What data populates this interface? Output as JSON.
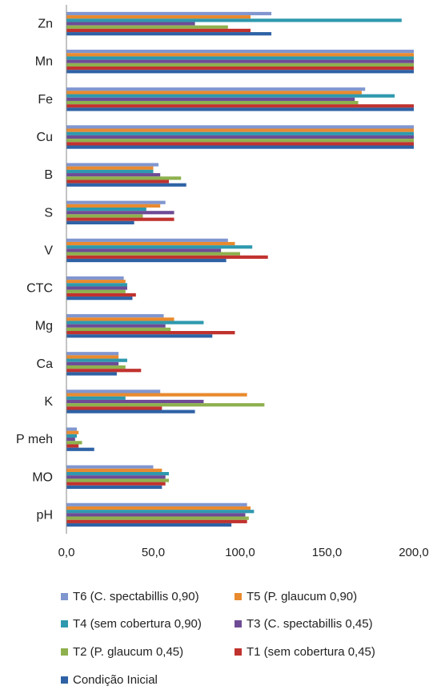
{
  "chart_data": {
    "type": "bar",
    "orientation": "horizontal",
    "categories": [
      "Zn",
      "Mn",
      "Fe",
      "Cu",
      "B",
      "S",
      "V",
      "CTC",
      "Mg",
      "Ca",
      "K",
      "P meh",
      "MO",
      "pH"
    ],
    "xlim": [
      0,
      200
    ],
    "xticks": [
      "0,0",
      "50,0",
      "100,0",
      "150,0",
      "200,0"
    ],
    "grid": false,
    "legend_position": "bottom",
    "title": "",
    "xlabel": "",
    "ylabel": "",
    "series": [
      {
        "name": "T6 (C. spectabillis 0,90)",
        "color": "#8096cf",
        "values": [
          118,
          200,
          172,
          200,
          53,
          57,
          93,
          33,
          56,
          30,
          54,
          6,
          50,
          104
        ]
      },
      {
        "name": "T5 (P. glaucum 0,90)",
        "color": "#e98a2e",
        "values": [
          106,
          200,
          170,
          200,
          50,
          54,
          97,
          34,
          62,
          30,
          104,
          7,
          55,
          106
        ]
      },
      {
        "name": "T4 (sem cobertura 0,90)",
        "color": "#2e99ae",
        "values": [
          193,
          200,
          189,
          200,
          50,
          46,
          107,
          35,
          79,
          35,
          34,
          6,
          59,
          108
        ]
      },
      {
        "name": "T3 (C. spectabillis 0,45)",
        "color": "#6e4b95",
        "values": [
          74,
          200,
          166,
          200,
          54,
          62,
          89,
          35,
          57,
          30,
          79,
          5,
          57,
          103
        ]
      },
      {
        "name": "T2 (P. glaucum 0,45)",
        "color": "#8eb14e",
        "values": [
          93,
          200,
          168,
          200,
          66,
          44,
          100,
          34,
          60,
          34,
          114,
          9,
          59,
          105
        ]
      },
      {
        "name": "T1 (sem cobertura 0,45)",
        "color": "#c0322e",
        "values": [
          106,
          200,
          200,
          200,
          59,
          62,
          116,
          40,
          97,
          43,
          55,
          7,
          57,
          104
        ]
      },
      {
        "name": "Condição Inicial",
        "color": "#2e62a5",
        "values": [
          118,
          200,
          200,
          200,
          69,
          39,
          92,
          38,
          84,
          29,
          74,
          16,
          55,
          95
        ]
      }
    ]
  }
}
